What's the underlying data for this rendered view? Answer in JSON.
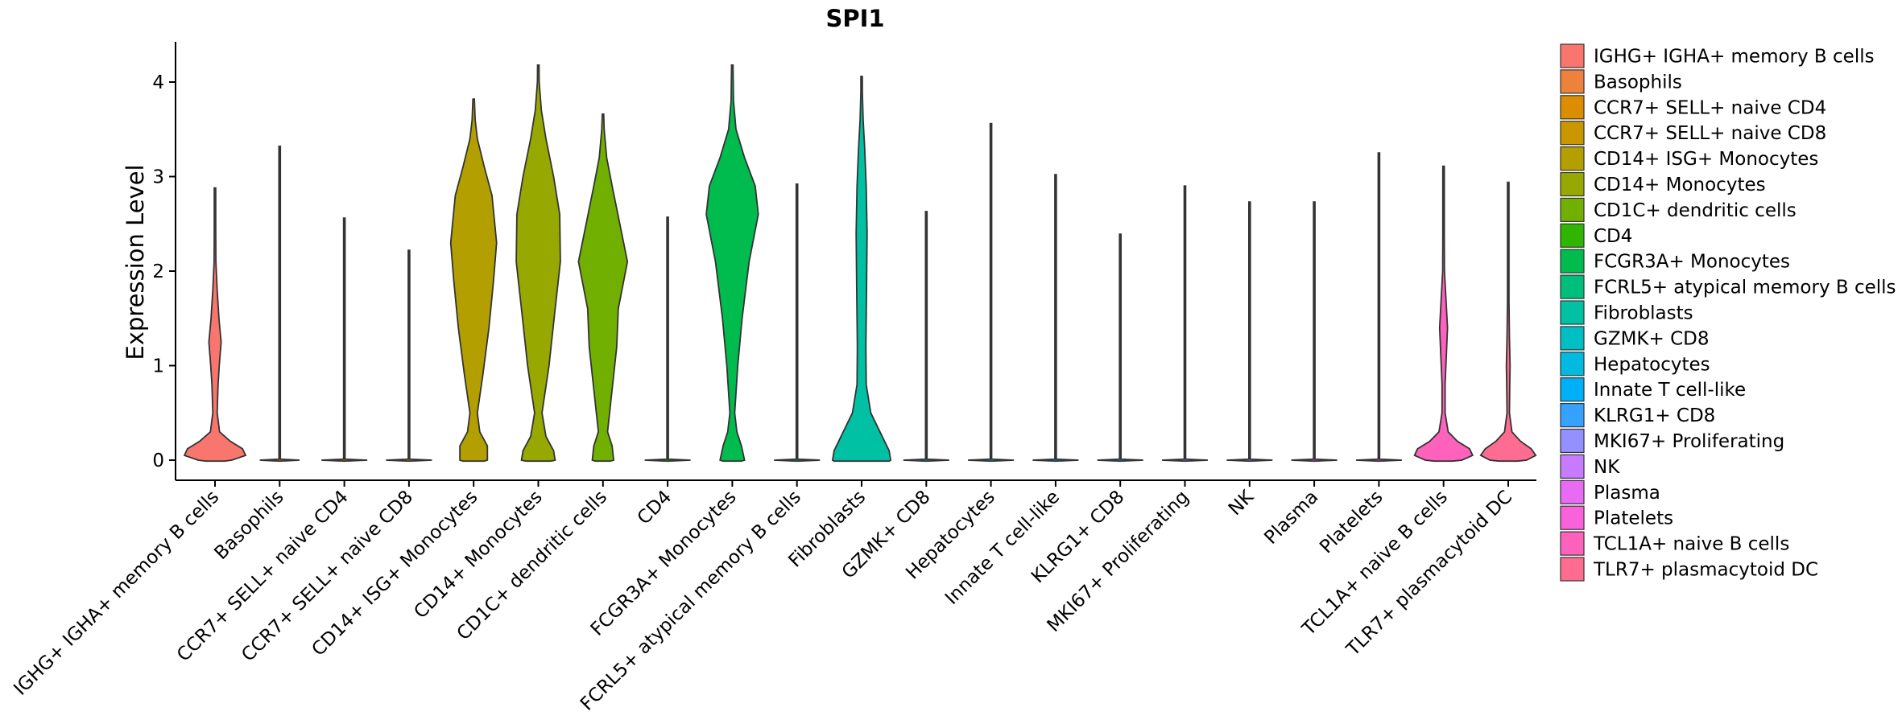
{
  "chart_data": {
    "type": "violin",
    "title": "SPI1",
    "ylabel": "Expression Level",
    "xlabel": "",
    "ylim": [
      -0.2,
      4.4
    ],
    "yticks": [
      0,
      1,
      2,
      3,
      4
    ],
    "legend_position": "right",
    "categories": [
      " IGHG+ IGHA+ memory B cells",
      "Basophils",
      "CCR7+ SELL+ naive CD4",
      "CCR7+ SELL+ naive CD8",
      "CD14+ ISG+ Monocytes",
      "CD14+ Monocytes",
      "CD1C+ dendritic cells",
      "CD4",
      "FCGR3A+ Monocytes",
      "FCRL5+ atypical memory B cells",
      "Fibroblasts",
      "GZMK+ CD8",
      "Hepatocytes",
      "Innate T cell-like",
      "KLRG1+ CD8",
      "MKI67+ Proliferating",
      "NK",
      "Plasma",
      "Platelets",
      "TCL1A+ naive B cells",
      "TLR7+ plasmacytoid DC"
    ],
    "colors": [
      "#F8766D",
      "#EC823C",
      "#DD8D00",
      "#CA9700",
      "#B3A000",
      "#97A900",
      "#71B000",
      "#2FB600",
      "#00BB4E",
      "#00BF7D",
      "#00C1A3",
      "#00BFC4",
      "#00BAE0",
      "#00B0F6",
      "#35A2FF",
      "#9590FF",
      "#C77CFF",
      "#E76BF3",
      "#FA62DB",
      "#FF62BC",
      "#FF6C92"
    ],
    "max_values": [
      2.88,
      3.32,
      2.56,
      2.22,
      3.82,
      4.18,
      3.66,
      2.57,
      4.18,
      2.92,
      4.06,
      2.63,
      3.56,
      3.02,
      2.39,
      2.9,
      2.73,
      2.73,
      3.25,
      3.11,
      2.94
    ],
    "density_profiles": [
      [
        [
          -0.01,
          0.3
        ],
        [
          0.0,
          0.55
        ],
        [
          0.05,
          1.0
        ],
        [
          0.12,
          0.9
        ],
        [
          0.2,
          0.5
        ],
        [
          0.3,
          0.15
        ],
        [
          0.5,
          0.07
        ],
        [
          0.8,
          0.1
        ],
        [
          1.0,
          0.14
        ],
        [
          1.25,
          0.2
        ],
        [
          1.5,
          0.13
        ],
        [
          1.8,
          0.07
        ],
        [
          2.1,
          0.03
        ],
        [
          2.5,
          0.015
        ],
        [
          2.88,
          0.008
        ]
      ],
      [
        [
          -0.01,
          0.0
        ],
        [
          0.0,
          0.65
        ],
        [
          0.01,
          0.0
        ],
        [
          3.32,
          0.0
        ]
      ],
      [
        [
          -0.01,
          0.0
        ],
        [
          0.0,
          0.75
        ],
        [
          0.01,
          0.0
        ],
        [
          2.56,
          0.0
        ]
      ],
      [
        [
          -0.01,
          0.0
        ],
        [
          0.0,
          0.75
        ],
        [
          0.01,
          0.0
        ],
        [
          2.22,
          0.0
        ]
      ],
      [
        [
          -0.01,
          0.35
        ],
        [
          0.0,
          0.45
        ],
        [
          0.15,
          0.45
        ],
        [
          0.3,
          0.2
        ],
        [
          0.5,
          0.12
        ],
        [
          0.9,
          0.3
        ],
        [
          1.4,
          0.5
        ],
        [
          1.9,
          0.65
        ],
        [
          2.3,
          0.75
        ],
        [
          2.8,
          0.6
        ],
        [
          3.1,
          0.35
        ],
        [
          3.4,
          0.12
        ],
        [
          3.6,
          0.05
        ],
        [
          3.82,
          0.01
        ]
      ],
      [
        [
          -0.01,
          0.4
        ],
        [
          0.0,
          0.55
        ],
        [
          0.1,
          0.5
        ],
        [
          0.25,
          0.25
        ],
        [
          0.5,
          0.12
        ],
        [
          1.0,
          0.35
        ],
        [
          1.6,
          0.55
        ],
        [
          2.1,
          0.72
        ],
        [
          2.6,
          0.7
        ],
        [
          3.0,
          0.5
        ],
        [
          3.4,
          0.25
        ],
        [
          3.7,
          0.1
        ],
        [
          4.0,
          0.03
        ],
        [
          4.18,
          0.005
        ]
      ],
      [
        [
          -0.01,
          0.25
        ],
        [
          0.0,
          0.35
        ],
        [
          0.15,
          0.3
        ],
        [
          0.3,
          0.15
        ],
        [
          0.6,
          0.25
        ],
        [
          1.2,
          0.45
        ],
        [
          1.6,
          0.5
        ],
        [
          2.1,
          0.8
        ],
        [
          2.5,
          0.55
        ],
        [
          2.9,
          0.3
        ],
        [
          3.2,
          0.12
        ],
        [
          3.5,
          0.04
        ],
        [
          3.66,
          0.005
        ]
      ],
      [
        [
          -0.01,
          0.0
        ],
        [
          0.0,
          0.75
        ],
        [
          0.01,
          0.0
        ],
        [
          2.57,
          0.0
        ]
      ],
      [
        [
          -0.01,
          0.3
        ],
        [
          0.0,
          0.4
        ],
        [
          0.15,
          0.3
        ],
        [
          0.3,
          0.15
        ],
        [
          0.5,
          0.08
        ],
        [
          1.0,
          0.18
        ],
        [
          1.5,
          0.32
        ],
        [
          2.1,
          0.55
        ],
        [
          2.6,
          0.85
        ],
        [
          2.9,
          0.75
        ],
        [
          3.2,
          0.4
        ],
        [
          3.5,
          0.12
        ],
        [
          3.8,
          0.04
        ],
        [
          4.18,
          0.005
        ]
      ],
      [
        [
          -0.01,
          0.0
        ],
        [
          0.0,
          0.75
        ],
        [
          0.01,
          0.0
        ],
        [
          2.92,
          0.0
        ]
      ],
      [
        [
          -0.01,
          0.9
        ],
        [
          0.0,
          0.95
        ],
        [
          0.1,
          0.9
        ],
        [
          0.3,
          0.6
        ],
        [
          0.5,
          0.3
        ],
        [
          0.8,
          0.15
        ],
        [
          1.2,
          0.14
        ],
        [
          1.8,
          0.16
        ],
        [
          2.4,
          0.18
        ],
        [
          2.9,
          0.15
        ],
        [
          3.3,
          0.1
        ],
        [
          3.6,
          0.05
        ],
        [
          3.9,
          0.02
        ],
        [
          4.06,
          0.005
        ]
      ],
      [
        [
          -0.01,
          0.0
        ],
        [
          0.0,
          0.75
        ],
        [
          0.01,
          0.0
        ],
        [
          2.63,
          0.0
        ]
      ],
      [
        [
          -0.01,
          0.0
        ],
        [
          0.0,
          0.75
        ],
        [
          0.01,
          0.0
        ],
        [
          3.56,
          0.0
        ]
      ],
      [
        [
          -0.01,
          0.0
        ],
        [
          0.0,
          0.75
        ],
        [
          0.01,
          0.0
        ],
        [
          3.02,
          0.0
        ]
      ],
      [
        [
          -0.01,
          0.0
        ],
        [
          0.0,
          0.75
        ],
        [
          0.01,
          0.0
        ],
        [
          2.39,
          0.0
        ]
      ],
      [
        [
          -0.01,
          0.0
        ],
        [
          0.0,
          0.75
        ],
        [
          0.01,
          0.0
        ],
        [
          2.9,
          0.0
        ]
      ],
      [
        [
          -0.01,
          0.0
        ],
        [
          0.0,
          0.75
        ],
        [
          0.01,
          0.0
        ],
        [
          2.73,
          0.0
        ]
      ],
      [
        [
          -0.01,
          0.0
        ],
        [
          0.0,
          0.75
        ],
        [
          0.01,
          0.0
        ],
        [
          2.73,
          0.0
        ]
      ],
      [
        [
          -0.01,
          0.0
        ],
        [
          0.0,
          0.75
        ],
        [
          0.01,
          0.0
        ],
        [
          3.25,
          0.0
        ]
      ],
      [
        [
          -0.01,
          0.3
        ],
        [
          0.0,
          0.6
        ],
        [
          0.05,
          0.95
        ],
        [
          0.12,
          0.85
        ],
        [
          0.2,
          0.45
        ],
        [
          0.3,
          0.15
        ],
        [
          0.5,
          0.05
        ],
        [
          0.8,
          0.05
        ],
        [
          1.1,
          0.09
        ],
        [
          1.4,
          0.13
        ],
        [
          1.7,
          0.08
        ],
        [
          2.0,
          0.03
        ],
        [
          2.4,
          0.01
        ],
        [
          3.11,
          0.003
        ]
      ],
      [
        [
          -0.01,
          0.3
        ],
        [
          0.0,
          0.6
        ],
        [
          0.05,
          0.9
        ],
        [
          0.12,
          0.75
        ],
        [
          0.2,
          0.4
        ],
        [
          0.3,
          0.12
        ],
        [
          0.5,
          0.04
        ],
        [
          0.8,
          0.05
        ],
        [
          1.0,
          0.06
        ],
        [
          1.3,
          0.04
        ],
        [
          1.7,
          0.02
        ],
        [
          2.1,
          0.01
        ],
        [
          2.94,
          0.003
        ]
      ]
    ]
  }
}
